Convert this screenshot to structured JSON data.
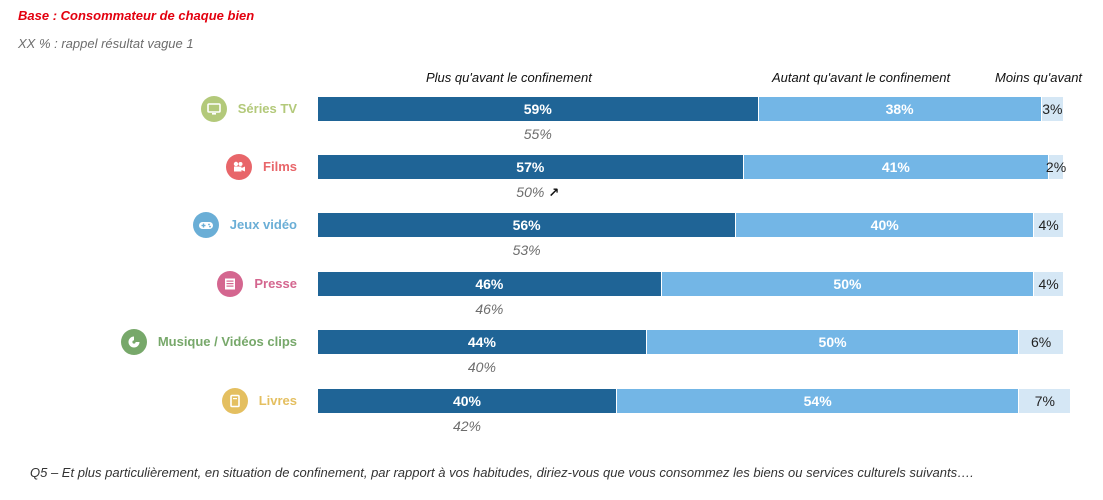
{
  "notes": {
    "base": "Base : Consommateur de chaque bien",
    "recall": "XX % : rappel résultat vague 1"
  },
  "footer": "Q5 – Et plus particulièrement, en situation de confinement, par rapport à vos habitudes, diriez-vous que vous consommez les biens ou services culturels suivants….",
  "chart_data": {
    "type": "bar",
    "stacked": true,
    "orientation": "horizontal",
    "legend_placement": "top",
    "categories": [
      "Séries TV",
      "Films",
      "Jeux vidéo",
      "Presse",
      "Musique / Vidéos clips",
      "Livres"
    ],
    "series": [
      {
        "name": "Plus qu'avant le confinement",
        "color": "#1f6496",
        "values": [
          59,
          57,
          56,
          46,
          44,
          40
        ]
      },
      {
        "name": "Autant qu'avant le confinement",
        "color": "#73b6e6",
        "values": [
          38,
          41,
          40,
          50,
          50,
          54
        ]
      },
      {
        "name": "Moins qu'avant",
        "color": "#d5e7f5",
        "values": [
          3,
          2,
          4,
          4,
          6,
          7
        ]
      }
    ],
    "value_labels": [
      [
        "59%",
        "38%",
        "3%"
      ],
      [
        "57%",
        "41%",
        "2%"
      ],
      [
        "56%",
        "40%",
        "4%"
      ],
      [
        "46%",
        "50%",
        "4%"
      ],
      [
        "44%",
        "50%",
        "6%"
      ],
      [
        "40%",
        "54%",
        "7%"
      ]
    ],
    "recall_wave1": [
      "55%",
      "50%",
      "53%",
      "46%",
      "40%",
      "42%"
    ],
    "recall_trend_up": [
      false,
      true,
      false,
      false,
      false,
      false
    ],
    "category_colors": [
      "#b3c97a",
      "#e8666a",
      "#6aaed6",
      "#d4668f",
      "#77a86a",
      "#e4bf60"
    ],
    "category_icons": [
      "tv-icon",
      "film-camera-icon",
      "gamepad-icon",
      "newspaper-icon",
      "music-disc-icon",
      "book-icon"
    ],
    "xlim": [
      0,
      100
    ],
    "grid": false
  }
}
